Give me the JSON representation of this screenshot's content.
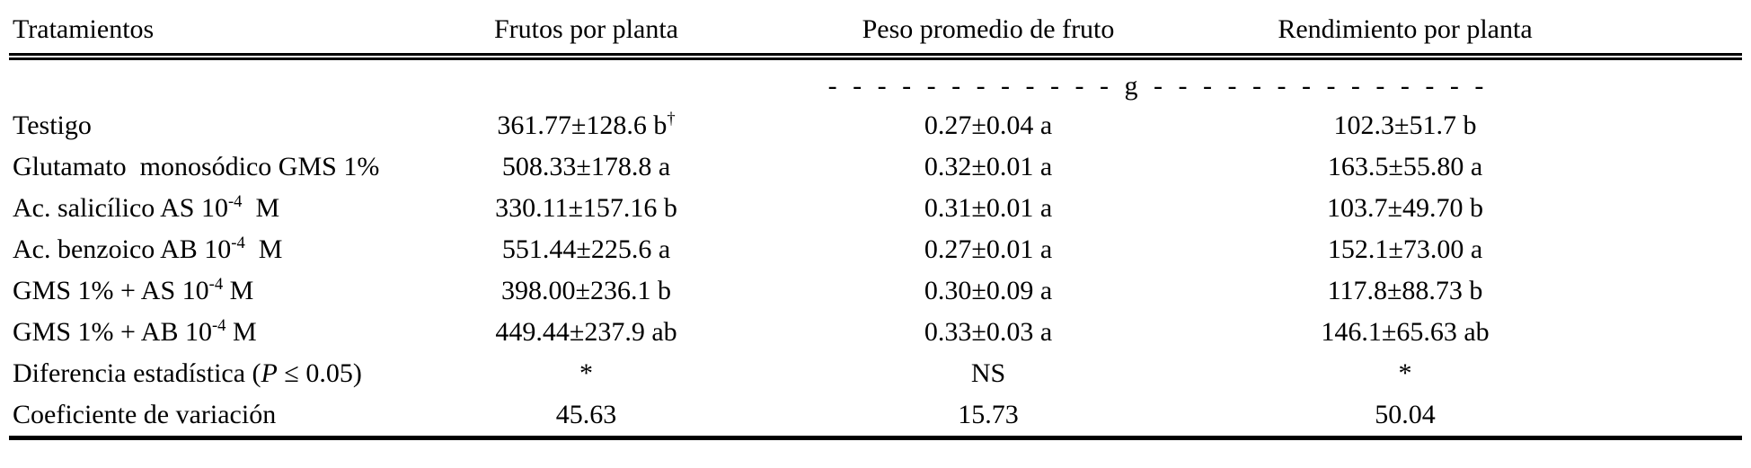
{
  "colors": {
    "text": "#000000",
    "background": "#ffffff",
    "rules": "#000000"
  },
  "table": {
    "headers": [
      "Tratamientos",
      "Frutos por planta",
      "Peso promedio de fruto",
      "Rendimiento por planta"
    ],
    "unit_line": "- - - - - - - - - - - - g - - - - - - - - - - - - - -",
    "rows": [
      {
        "cells": [
          [
            {
              "t": "Testigo"
            }
          ],
          [
            {
              "t": "361.77±128.6 b"
            },
            {
              "t": "†",
              "sup": true
            }
          ],
          [
            {
              "t": "0.27±0.04 a"
            }
          ],
          [
            {
              "t": "102.3±51.7 b"
            }
          ]
        ]
      },
      {
        "cells": [
          [
            {
              "t": "Glutamato  monosódico GMS 1%"
            }
          ],
          [
            {
              "t": "508.33±178.8 a"
            }
          ],
          [
            {
              "t": "0.32±0.01 a"
            }
          ],
          [
            {
              "t": "163.5±55.80 a"
            }
          ]
        ]
      },
      {
        "cells": [
          [
            {
              "t": "Ac. salicílico AS 10"
            },
            {
              "t": "-4",
              "sup": true
            },
            {
              "t": "  M"
            }
          ],
          [
            {
              "t": "330.11±157.16 b"
            }
          ],
          [
            {
              "t": "0.31±0.01 a"
            }
          ],
          [
            {
              "t": "103.7±49.70 b"
            }
          ]
        ]
      },
      {
        "cells": [
          [
            {
              "t": "Ac. benzoico AB 10"
            },
            {
              "t": "-4",
              "sup": true
            },
            {
              "t": "  M"
            }
          ],
          [
            {
              "t": "551.44±225.6 a"
            }
          ],
          [
            {
              "t": "0.27±0.01 a"
            }
          ],
          [
            {
              "t": "152.1±73.00 a"
            }
          ]
        ]
      },
      {
        "cells": [
          [
            {
              "t": "GMS 1% + AS 10"
            },
            {
              "t": "-4",
              "sup": true
            },
            {
              "t": " M"
            }
          ],
          [
            {
              "t": "398.00±236.1 b"
            }
          ],
          [
            {
              "t": "0.30±0.09 a"
            }
          ],
          [
            {
              "t": "117.8±88.73 b"
            }
          ]
        ]
      },
      {
        "cells": [
          [
            {
              "t": "GMS 1% + AB 10"
            },
            {
              "t": "-4",
              "sup": true
            },
            {
              "t": " M"
            }
          ],
          [
            {
              "t": "449.44±237.9 ab"
            }
          ],
          [
            {
              "t": "0.33±0.03 a"
            }
          ],
          [
            {
              "t": "146.1±65.63 ab"
            }
          ]
        ]
      },
      {
        "cells": [
          [
            {
              "t": "Diferencia estadística ("
            },
            {
              "t": "P",
              "i": true
            },
            {
              "t": " ≤ 0.05)"
            }
          ],
          [
            {
              "t": "*"
            }
          ],
          [
            {
              "t": "NS"
            }
          ],
          [
            {
              "t": "*"
            }
          ]
        ]
      },
      {
        "cells": [
          [
            {
              "t": "Coeficiente de variación"
            }
          ],
          [
            {
              "t": "45.63"
            }
          ],
          [
            {
              "t": "15.73"
            }
          ],
          [
            {
              "t": "50.04"
            }
          ]
        ]
      }
    ]
  }
}
